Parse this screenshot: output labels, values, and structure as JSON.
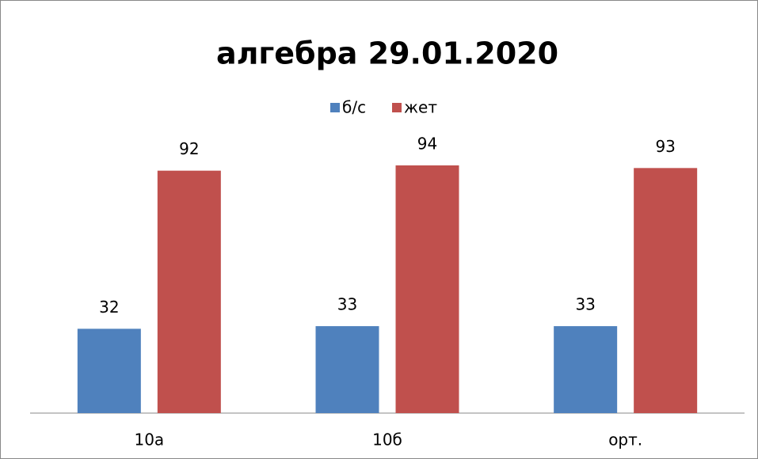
{
  "chart_data": {
    "type": "bar",
    "title": "алгебра 29.01.2020",
    "categories": [
      "10а",
      "10б",
      "орт."
    ],
    "series": [
      {
        "name": "б/с",
        "color": "#4f81bd",
        "values": [
          32,
          33,
          33
        ]
      },
      {
        "name": "жет",
        "color": "#c0504d",
        "values": [
          92,
          94,
          93
        ]
      }
    ],
    "legend": "top"
  }
}
